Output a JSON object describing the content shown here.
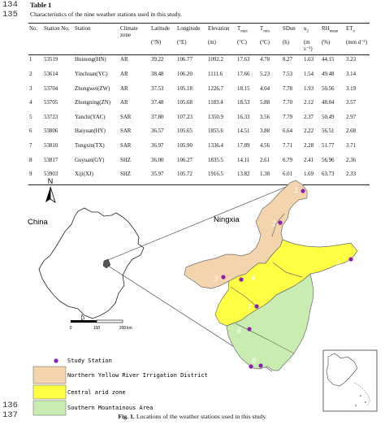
{
  "line_numbers": {
    "top": "134",
    "second": "135",
    "fig_a": "136",
    "fig_b": "137"
  },
  "table": {
    "label": "Table 1",
    "caption": "Characteristics of the nine weather stations used in this study.",
    "headers": [
      "No.",
      "Station No.",
      "Station",
      "Climate zone",
      "Latitude",
      "Longitude",
      "Elevation",
      "T",
      "T",
      "SDun",
      "u",
      "RH",
      "ET"
    ],
    "header_subs": [
      "",
      "",
      "",
      "",
      "",
      "",
      "",
      "max",
      "min",
      "",
      "2",
      "mean",
      "o"
    ],
    "units": [
      "",
      "",
      "",
      "",
      "(°N)",
      "(°E)",
      "(m)",
      "(°C)",
      "(°C)",
      "(h)",
      "(m s⁻¹)",
      "(%)",
      "(mm d⁻¹)"
    ],
    "rows": [
      [
        "1",
        "53519",
        "Huinong(HN)",
        "AR",
        "39.22",
        "106.77",
        "1092.2",
        "17.63",
        "4.78",
        "8.27",
        "1.63",
        "44.15",
        "3.23"
      ],
      [
        "2",
        "53614",
        "Yinchuan(YC)",
        "AR",
        "38.48",
        "106.20",
        "1111.6",
        "17.66",
        "5.23",
        "7.53",
        "1.54",
        "49.48",
        "3.14"
      ],
      [
        "3",
        "53704",
        "Zhongwei(ZW)",
        "AR",
        "37.53",
        "105.18",
        "1226.7",
        "18.15",
        "4.04",
        "7.78",
        "1.93",
        "50.56",
        "3.19"
      ],
      [
        "4",
        "53705",
        "Zhongning(ZN)",
        "AR",
        "37.48",
        "105.68",
        "1183.4",
        "18.53",
        "5.88",
        "7.70",
        "2.12",
        "48.04",
        "3.57"
      ],
      [
        "5",
        "53723",
        "Yanchi(YAC)",
        "SAR",
        "37.80",
        "107.23",
        "1350.9",
        "16.33",
        "3.56",
        "7.79",
        "2.37",
        "50.49",
        "2.97"
      ],
      [
        "6",
        "53806",
        "Haiyuan(HY)",
        "SAR",
        "36.57",
        "105.65",
        "1855.6",
        "14.51",
        "3.88",
        "6.64",
        "2.22",
        "56.51",
        "2.68"
      ],
      [
        "7",
        "53810",
        "Tongxin(TX)",
        "SAR",
        "36.97",
        "105.90",
        "1336.4",
        "17.89",
        "4.56",
        "7.71",
        "2.28",
        "51.77",
        "3.71"
      ],
      [
        "8",
        "53817",
        "Guyuan(GY)",
        "SHZ",
        "36.00",
        "106.27",
        "1835.5",
        "14.11",
        "2.61",
        "6.79",
        "2.41",
        "56.96",
        "2.36"
      ],
      [
        "9",
        "53903",
        "Xiji(XJ)",
        "SHZ",
        "35.97",
        "105.72",
        "1916.5",
        "13.82",
        "1.38",
        "6.01",
        "1.69",
        "63.73",
        "2.33"
      ]
    ]
  },
  "figure": {
    "north_label": "N",
    "china_label": "China",
    "ningxia_label": "Ningxia",
    "scale_ticks": [
      "0",
      "100",
      "200"
    ],
    "scale_unit": "km",
    "station_numbers": [
      "1",
      "2",
      "3",
      "4",
      "5",
      "6",
      "7",
      "8",
      "9"
    ],
    "legend": [
      {
        "label": "Study Station",
        "swatch": "dot"
      },
      {
        "label": "Northern Yellow River Irrigation District",
        "swatch": "#f3d4ad"
      },
      {
        "label": "Central arid zone",
        "swatch": "#ffff44"
      },
      {
        "label": "Southern Mountainous Area",
        "swatch": "#c9ecb0"
      }
    ],
    "caption_bold": "Fig. 1.",
    "caption_text": " Locations of the weather stations used in this study.",
    "colors": {
      "northern": "#f3d4ad",
      "central": "#ffff44",
      "southern": "#c9ecb0",
      "station": "#8a1fb0",
      "station_label": "#ffffff",
      "region_border": "#6c6c6c"
    }
  }
}
